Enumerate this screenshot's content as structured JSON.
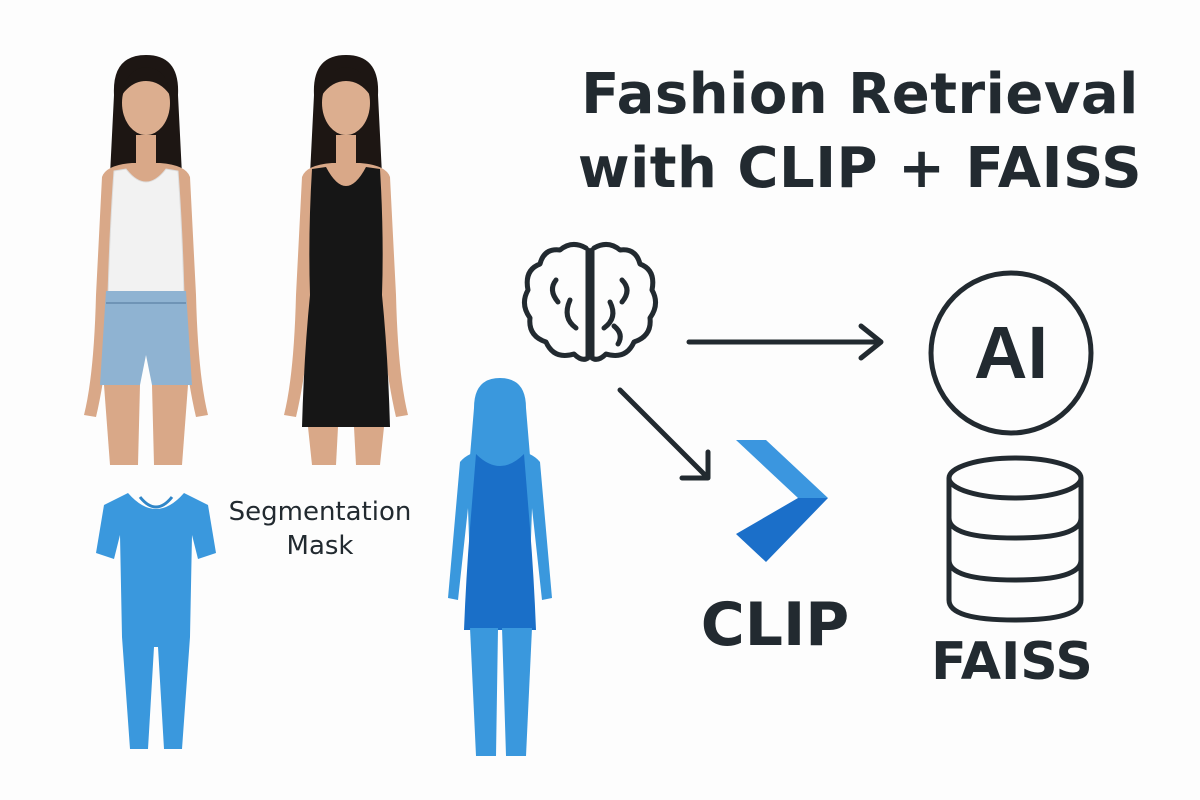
{
  "title": {
    "line1": "Fashion Retrieval",
    "line2": "with CLIP + FAISS"
  },
  "segmentation": {
    "label_line1": "Segmentation",
    "label_line2": "Mask"
  },
  "nodes": {
    "ai_icon_text": "AI",
    "clip_label": "CLIP",
    "faiss_label": "FAISS"
  },
  "colors": {
    "text": "#222a30",
    "mask_light": "#3a98dd",
    "mask_dark": "#1a6fc8",
    "clip_logo_light": "#3b96df",
    "clip_logo_dark": "#1b6fc9",
    "denim": "#8fb3d2",
    "black_dress": "#161616",
    "white_top": "#f2f2f2",
    "skin": "#d9a888",
    "hair": "#1d1613"
  },
  "icons": [
    "brain-icon",
    "ai-circle-icon",
    "clip-logo-icon",
    "database-icon",
    "arrow-right",
    "arrow-down-right"
  ]
}
